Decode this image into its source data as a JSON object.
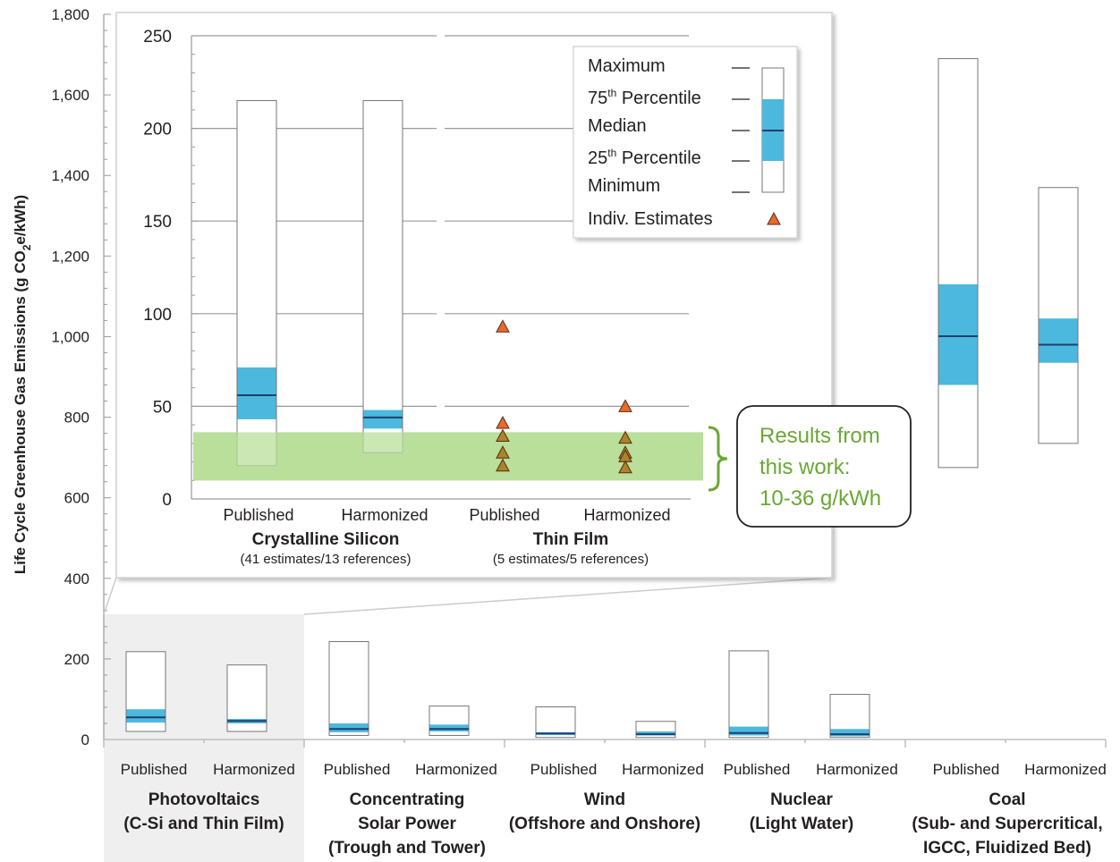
{
  "chart_data": [
    {
      "type": "box",
      "ylabel_parts": [
        "Life Cycle Greenhouse Gas Emissions (g CO",
        "2",
        "e/kWh)"
      ],
      "yticks": [
        0,
        200,
        400,
        600,
        800,
        1000,
        1200,
        1400,
        1600,
        1800
      ],
      "ytick_labels": [
        "0",
        "200",
        "400",
        "600",
        "800",
        "1,000",
        "1,200",
        "1,400",
        "1,600",
        "1,800"
      ],
      "ylim": [
        0,
        1800
      ],
      "xtick_labels": [
        "Published",
        "Harmonized",
        "Published",
        "Harmonized",
        "Published",
        "Harmonized",
        "Published",
        "Harmonized",
        "Published",
        "Harmonized"
      ],
      "group_lines": [
        [
          "Photovoltaics",
          "(C-Si and Thin Film)"
        ],
        [
          "Concentrating",
          "Solar Power",
          "(Trough and Tower)"
        ],
        [
          "Wind",
          "(Offshore and Onshore)"
        ],
        [
          "Nuclear",
          "(Light Water)"
        ],
        [
          "Coal",
          "(Sub- and Supercritical,",
          "IGCC, Fluidized Bed)"
        ]
      ],
      "boxes": [
        {
          "min": 20,
          "q1": 42,
          "median": 55,
          "q3": 75,
          "max": 218
        },
        {
          "min": 20,
          "q1": 40,
          "median": 46,
          "q3": 51,
          "max": 185
        },
        {
          "min": 10,
          "q1": 18,
          "median": 26,
          "q3": 40,
          "max": 243
        },
        {
          "min": 10,
          "q1": 20,
          "median": 26,
          "q3": 37,
          "max": 83
        },
        {
          "min": 5,
          "q1": 11,
          "median": 15,
          "q3": 18,
          "max": 81
        },
        {
          "min": 5,
          "q1": 10,
          "median": 13,
          "q3": 20,
          "max": 45
        },
        {
          "min": 5,
          "q1": 10,
          "median": 16,
          "q3": 32,
          "max": 220
        },
        {
          "min": 5,
          "q1": 8,
          "median": 13,
          "q3": 26,
          "max": 112
        },
        {
          "min": 675,
          "q1": 880,
          "median": 1001,
          "q3": 1130,
          "max": 1690
        },
        {
          "min": 735,
          "q1": 935,
          "median": 980,
          "q3": 1045,
          "max": 1370
        }
      ]
    },
    {
      "type": "box",
      "yticks": [
        0,
        50,
        100,
        150,
        200,
        250
      ],
      "ytick_labels": [
        "0",
        "50",
        "100",
        "150",
        "200",
        "250"
      ],
      "ylim": [
        0,
        250
      ],
      "xtick_labels": [
        "Published",
        "Harmonized",
        "Published",
        "Harmonized"
      ],
      "group_titles": [
        "Crystalline Silicon",
        "Thin Film"
      ],
      "group_subtitles": [
        "(41 estimates/13 references)",
        "(5 estimates/5 references)"
      ],
      "boxes": [
        {
          "min": 18,
          "q1": 43,
          "median": 56,
          "q3": 71,
          "max": 215
        },
        {
          "min": 25,
          "q1": 38,
          "median": 44,
          "q3": 48,
          "max": 215
        }
      ],
      "estimates": [
        {
          "category": "Thin Film Published",
          "values": [
            93,
            41,
            34,
            25,
            18
          ]
        },
        {
          "category": "Thin Film Harmonized",
          "values": [
            50,
            33,
            25,
            23,
            17
          ]
        }
      ],
      "highlight_band": [
        10,
        36
      ],
      "annotation_lines": [
        "Results from",
        "this work:",
        "10-36 g/kWh"
      ],
      "legend": {
        "placement": "top-right",
        "items": [
          {
            "label": "Maximum"
          },
          {
            "label": "75",
            "sup": "th",
            "suffix": " Percentile"
          },
          {
            "label": "Median"
          },
          {
            "label": "25",
            "sup": "th",
            "suffix": " Percentile"
          },
          {
            "label": "Minimum"
          },
          {
            "label": "Indiv. Estimates"
          }
        ]
      }
    }
  ],
  "colors": {
    "iqr": "#4db8dd",
    "median": "#1f3f6e",
    "band": "#b9df9b",
    "estimate": "#e86a2c",
    "estimate_in_band": "#a9852a",
    "results_text": "#6aa834",
    "panel_bg": "#efefef"
  }
}
